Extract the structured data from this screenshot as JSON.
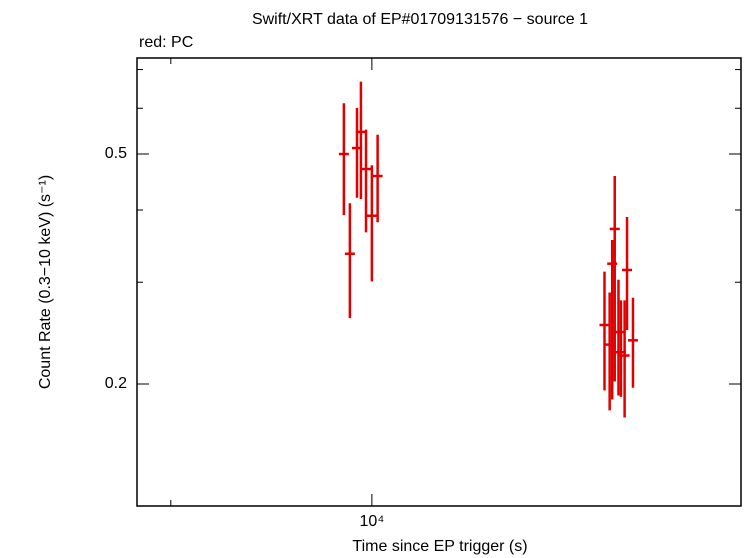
{
  "chart_data": {
    "type": "scatter",
    "title": "Swift/XRT data of EP#01709131576 − source 1",
    "subtitle": "red: PC",
    "x_label": "Time since EP trigger (s)",
    "y_label": "Count Rate (0.3−10 keV) (s⁻¹)",
    "xscale": "log",
    "yscale": "log",
    "xlim": [
      4450,
      35700
    ],
    "ylim": [
      0.123,
      0.733
    ],
    "xticks": [
      {
        "value": 10000,
        "label": "10⁴"
      }
    ],
    "xminor": [
      5000
    ],
    "yticks": [
      0.5,
      0.2
    ],
    "yminor": [
      0.7,
      0.6,
      0.4,
      0.3
    ],
    "series": [
      {
        "name": "PC",
        "color": "#e00000",
        "x": [
          9080,
          9270,
          9500,
          9630,
          9800,
          10000,
          10200,
          22300,
          22700,
          22900,
          23100,
          23400,
          23600,
          23900,
          24100,
          24600
        ],
        "values": [
          0.5,
          0.336,
          0.512,
          0.546,
          0.471,
          0.391,
          0.458,
          0.253,
          0.234,
          0.323,
          0.371,
          0.246,
          0.227,
          0.224,
          0.315,
          0.238
        ],
        "y_lower": [
          0.392,
          0.26,
          0.42,
          0.418,
          0.366,
          0.301,
          0.381,
          0.195,
          0.18,
          0.188,
          0.202,
          0.191,
          0.19,
          0.175,
          0.248,
          0.197
        ],
        "y_upper": [
          0.612,
          0.411,
          0.601,
          0.667,
          0.551,
          0.478,
          0.54,
          0.313,
          0.288,
          0.355,
          0.458,
          0.303,
          0.279,
          0.279,
          0.389,
          0.282
        ]
      }
    ]
  }
}
